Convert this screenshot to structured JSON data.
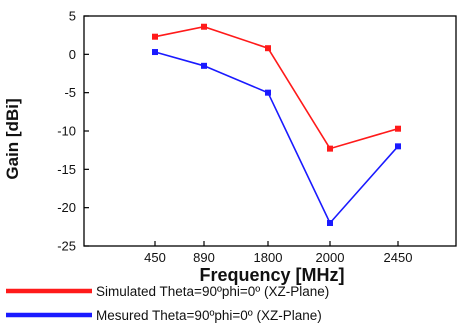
{
  "chart_data": {
    "type": "line",
    "categories": [
      "450",
      "890",
      "1800",
      "2000",
      "2450"
    ],
    "xlabel": "Frequency [MHz]",
    "ylabel": "Gain [dBi]",
    "ylim": [
      -25,
      5
    ],
    "yticks": [
      5,
      0,
      -5,
      -10,
      -15,
      -20,
      -25
    ],
    "grid": false,
    "legend_position": "bottom",
    "series": [
      {
        "name": "Simulated Theta=90ºphi=0º (XZ-Plane)",
        "color": "#ff1a1a",
        "marker": "square",
        "values": [
          2.3,
          3.6,
          0.8,
          -12.3,
          -9.7
        ]
      },
      {
        "name": "Mesured Theta=90ºphi=0º (XZ-Plane)",
        "color": "#1a1aff",
        "marker": "square",
        "values": [
          0.3,
          -1.5,
          -5.0,
          -22.0,
          -12.0
        ]
      }
    ]
  }
}
